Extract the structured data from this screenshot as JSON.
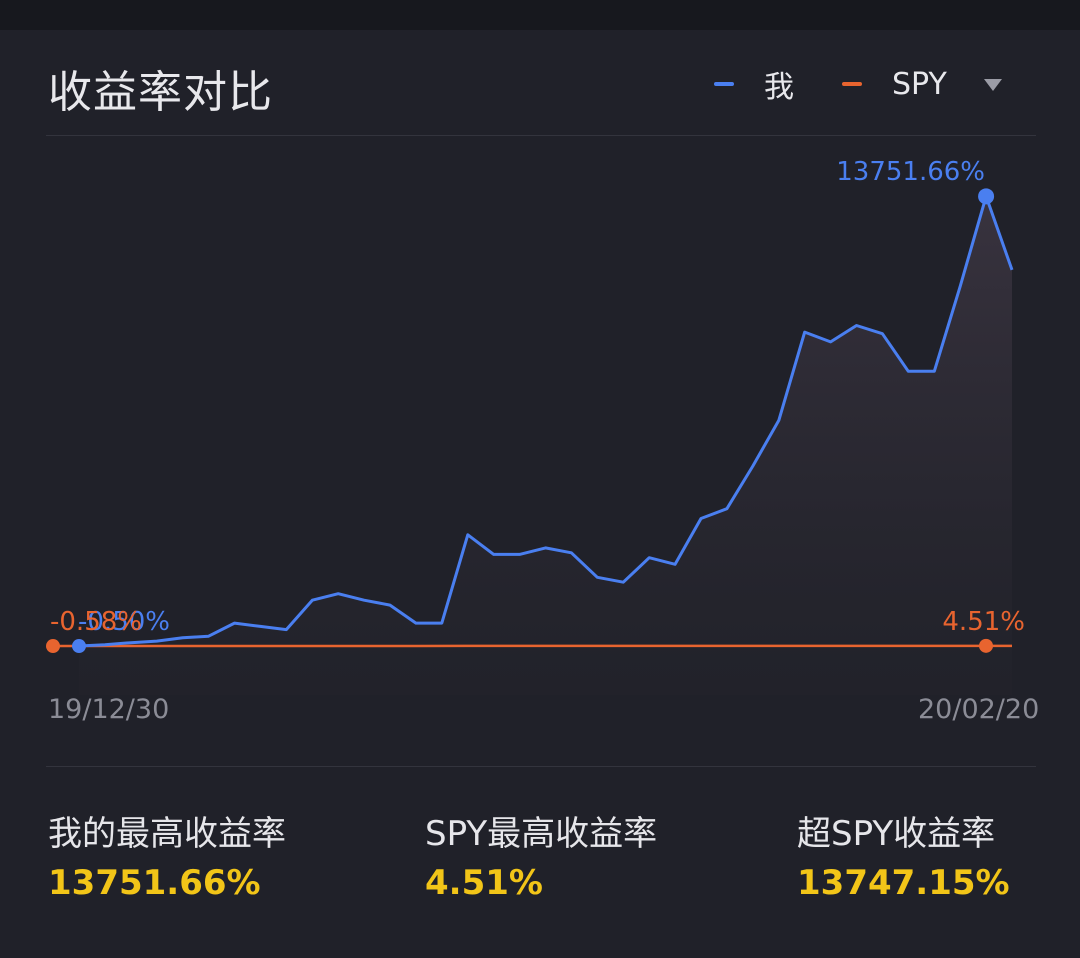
{
  "title": "收益率对比",
  "legend": [
    {
      "label": "我",
      "color": "#4a7ff0"
    },
    {
      "label": "SPY",
      "color": "#e8642f"
    }
  ],
  "dropdown_icon": "caret-down-icon",
  "chart_data": {
    "type": "line",
    "title": "收益率对比",
    "x_start": "19/12/30",
    "x_end": "20/02/20",
    "y_unit": "%",
    "ylim": [
      -2000,
      15000
    ],
    "legend_position": "top-right",
    "series": [
      {
        "name": "我",
        "color": "#4a7ff0",
        "start_label": "-0.50%",
        "peak_label": "13751.66%",
        "values": [
          -0.5,
          40,
          100,
          150,
          250,
          300,
          700,
          600,
          500,
          1400,
          1600,
          1400,
          1250,
          700,
          700,
          3400,
          2800,
          2800,
          3000,
          2850,
          2100,
          1950,
          2700,
          2500,
          3900,
          4200,
          5500,
          6900,
          9600,
          9300,
          9800,
          9550,
          8400,
          8400,
          11000,
          13751.66,
          11500
        ]
      },
      {
        "name": "SPY",
        "color": "#e8642f",
        "start_label": "-0.58%",
        "end_label": "4.51%",
        "values": [
          -0.58,
          0,
          0.2,
          0.5,
          0.8,
          1,
          1.2,
          1.5,
          1.8,
          2,
          2.2,
          2.5,
          2.8,
          3,
          3.2,
          3.5,
          3.8,
          4,
          4.51
        ]
      }
    ]
  },
  "stats": [
    {
      "label": "我的最高收益率",
      "value": "13751.66%"
    },
    {
      "label": "SPY最高收益率",
      "value": "4.51%"
    },
    {
      "label": "超SPY收益率",
      "value": "13747.15%"
    }
  ]
}
